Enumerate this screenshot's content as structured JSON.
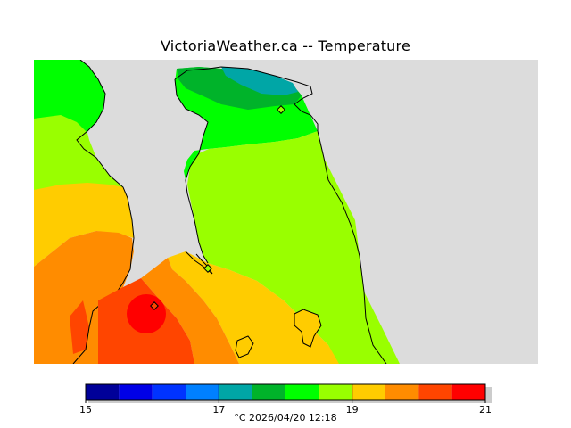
{
  "title": "VictoriaWeather.ca -- Temperature",
  "legend": {
    "colors": [
      "#000099",
      "#0000e6",
      "#0033ff",
      "#0080ff",
      "#00a6a6",
      "#00b32a",
      "#00ff00",
      "#99ff00",
      "#ffcc00",
      "#ff8c00",
      "#ff4500",
      "#ff0000"
    ],
    "ticks": [
      {
        "value": 15,
        "label": "15"
      },
      {
        "value": 17,
        "label": "17"
      },
      {
        "value": 19,
        "label": "19"
      },
      {
        "value": 21,
        "label": "21"
      }
    ],
    "min": 15,
    "max": 21,
    "caption": "°C  2026/04/20 12:18"
  },
  "map": {
    "land_color": "#dcdcdc",
    "station_markers": 3
  }
}
